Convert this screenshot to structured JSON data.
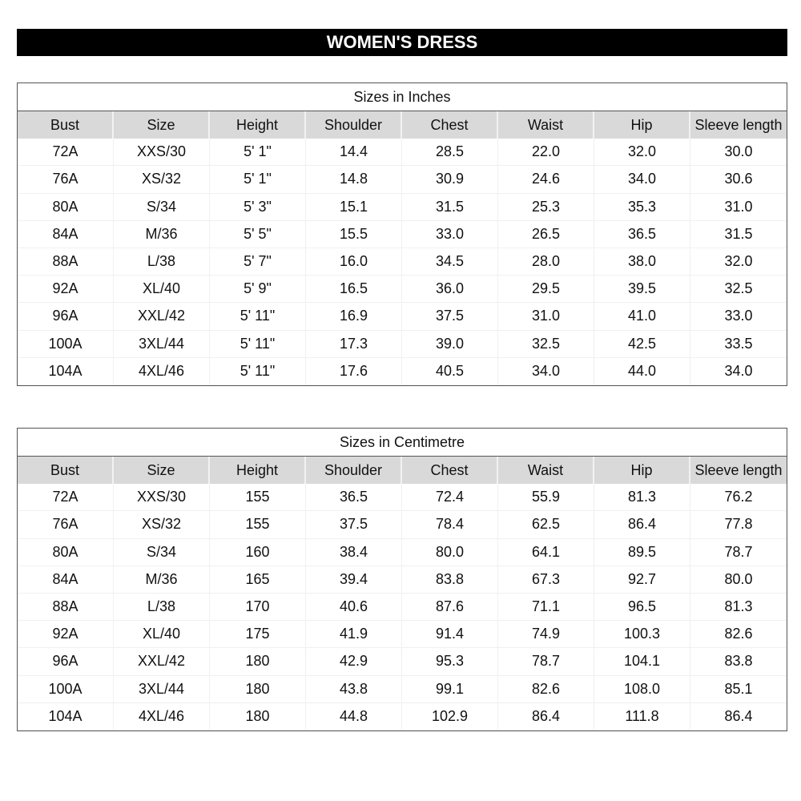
{
  "title": "WOMEN'S DRESS",
  "columns": [
    "Bust",
    "Size",
    "Height",
    "Shoulder",
    "Chest",
    "Waist",
    "Hip",
    "Sleeve length"
  ],
  "tables": [
    {
      "caption": "Sizes in Inches",
      "rows": [
        [
          "72A",
          "XXS/30",
          "5' 1\"",
          "14.4",
          "28.5",
          "22.0",
          "32.0",
          "30.0"
        ],
        [
          "76A",
          "XS/32",
          "5' 1\"",
          "14.8",
          "30.9",
          "24.6",
          "34.0",
          "30.6"
        ],
        [
          "80A",
          "S/34",
          "5' 3\"",
          "15.1",
          "31.5",
          "25.3",
          "35.3",
          "31.0"
        ],
        [
          "84A",
          "M/36",
          "5' 5\"",
          "15.5",
          "33.0",
          "26.5",
          "36.5",
          "31.5"
        ],
        [
          "88A",
          "L/38",
          "5' 7\"",
          "16.0",
          "34.5",
          "28.0",
          "38.0",
          "32.0"
        ],
        [
          "92A",
          "XL/40",
          "5' 9\"",
          "16.5",
          "36.0",
          "29.5",
          "39.5",
          "32.5"
        ],
        [
          "96A",
          "XXL/42",
          "5' 11\"",
          "16.9",
          "37.5",
          "31.0",
          "41.0",
          "33.0"
        ],
        [
          "100A",
          "3XL/44",
          "5' 11\"",
          "17.3",
          "39.0",
          "32.5",
          "42.5",
          "33.5"
        ],
        [
          "104A",
          "4XL/46",
          "5' 11\"",
          "17.6",
          "40.5",
          "34.0",
          "44.0",
          "34.0"
        ]
      ]
    },
    {
      "caption": "Sizes in Centimetre",
      "rows": [
        [
          "72A",
          "XXS/30",
          "155",
          "36.5",
          "72.4",
          "55.9",
          "81.3",
          "76.2"
        ],
        [
          "76A",
          "XS/32",
          "155",
          "37.5",
          "78.4",
          "62.5",
          "86.4",
          "77.8"
        ],
        [
          "80A",
          "S/34",
          "160",
          "38.4",
          "80.0",
          "64.1",
          "89.5",
          "78.7"
        ],
        [
          "84A",
          "M/36",
          "165",
          "39.4",
          "83.8",
          "67.3",
          "92.7",
          "80.0"
        ],
        [
          "88A",
          "L/38",
          "170",
          "40.6",
          "87.6",
          "71.1",
          "96.5",
          "81.3"
        ],
        [
          "92A",
          "XL/40",
          "175",
          "41.9",
          "91.4",
          "74.9",
          "100.3",
          "82.6"
        ],
        [
          "96A",
          "XXL/42",
          "180",
          "42.9",
          "95.3",
          "78.7",
          "104.1",
          "83.8"
        ],
        [
          "100A",
          "3XL/44",
          "180",
          "43.8",
          "99.1",
          "82.6",
          "108.0",
          "85.1"
        ],
        [
          "104A",
          "4XL/46",
          "180",
          "44.8",
          "102.9",
          "86.4",
          "111.8",
          "86.4"
        ]
      ]
    }
  ]
}
